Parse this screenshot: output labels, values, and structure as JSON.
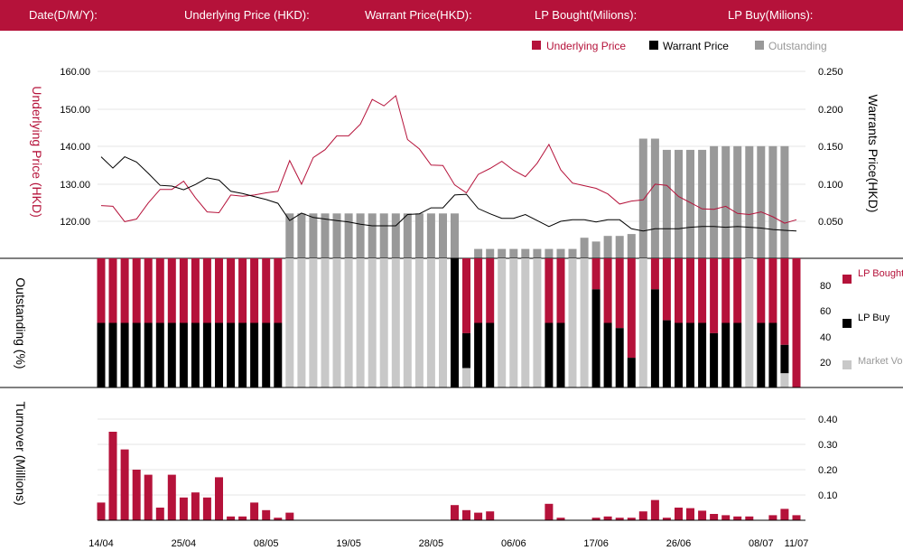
{
  "header": {
    "date_label": "Date(D/M/Y):",
    "underlying_label": "Underlying Price (HKD):",
    "warrant_label": "Warrant  Price(HKD):",
    "lp_bought_label": "LP Bought(Milions):",
    "lp_buy_label": "LP Buy(Milions):"
  },
  "colors": {
    "red": "#b5123a",
    "black": "#000000",
    "dark_gray": "#999999",
    "light_gray": "#c8c8c8"
  },
  "chart_data": [
    {
      "type": "line",
      "legend": [
        "Underlying Price",
        "Warrant  Price",
        "Outstanding"
      ],
      "y_left_label": "Underlying Price (HKD)",
      "y_right_label": "Warrants  Price(HKD)",
      "y_left_ticks": [
        "160.00",
        "150.00",
        "140.00",
        "130.00",
        "120.00"
      ],
      "y_right_ticks": [
        "0.250",
        "0.200",
        "0.150",
        "0.100",
        "0.050"
      ],
      "y_left_range": [
        115,
        160
      ],
      "y_right_range": [
        0.027,
        0.25
      ],
      "underlying": [
        124.2,
        124,
        119.9,
        120.6,
        124.9,
        128.5,
        128.5,
        130.7,
        126.3,
        122.5,
        122.3,
        127,
        126.7,
        127,
        127.6,
        128,
        136.2,
        129.9,
        137,
        139.1,
        142.8,
        142.8,
        145.9,
        152.5,
        150.8,
        153.5,
        141.8,
        139.3,
        135,
        134.9,
        129.7,
        127.6,
        132.5,
        134.1,
        136,
        133.6,
        131.9,
        135.5,
        140.5,
        133.7,
        130.2,
        129.5,
        128.8,
        127.3,
        124.6,
        125.4,
        125.7,
        129.9,
        129.6,
        126.6,
        125,
        123.3,
        123.2,
        124,
        122.1,
        121.8,
        122.5,
        121.2,
        119.5,
        120.4
      ],
      "warrant": [
        0.136,
        0.121,
        0.136,
        0.129,
        0.114,
        0.098,
        0.097,
        0.092,
        0.099,
        0.108,
        0.105,
        0.09,
        0.087,
        0.083,
        0.079,
        0.074,
        0.051,
        0.061,
        0.055,
        0.053,
        0.051,
        0.049,
        0.046,
        0.044,
        0.044,
        0.044,
        0.059,
        0.06,
        0.068,
        0.068,
        0.085,
        0.086,
        0.067,
        0.06,
        0.054,
        0.054,
        0.059,
        0.051,
        0.043,
        0.05,
        0.052,
        0.052,
        0.049,
        0.052,
        0.052,
        0.04,
        0.037,
        0.04,
        0.04,
        0.04,
        0.042,
        0.043,
        0.043,
        0.042,
        0.043,
        0.042,
        0.041,
        0.039,
        0.038,
        0.037
      ],
      "outstanding_pct": [
        0,
        0,
        0,
        0,
        0,
        0,
        0,
        0,
        0,
        0,
        0,
        0,
        0,
        0,
        0,
        0,
        24,
        24,
        24,
        24,
        24,
        24,
        24,
        24,
        24,
        24,
        24,
        24,
        24,
        24,
        24,
        0,
        5,
        5,
        5,
        5,
        5,
        5,
        5,
        5,
        5,
        11,
        9,
        12,
        12,
        13,
        64,
        64,
        58,
        58,
        58,
        58,
        60,
        60,
        60,
        60,
        60,
        60,
        60,
        0
      ]
    },
    {
      "type": "bar",
      "y_label": "Outstanding (%)",
      "y_ticks": [
        "80",
        "60",
        "40",
        "20"
      ],
      "y_range": [
        0,
        100
      ],
      "legend": [
        "LP Bought",
        "LP Buy",
        "Market Volume"
      ],
      "lp_buy_pct": [
        50,
        50,
        50,
        50,
        50,
        50,
        50,
        50,
        50,
        50,
        50,
        50,
        50,
        50,
        50,
        50,
        0,
        0,
        0,
        0,
        0,
        0,
        0,
        0,
        0,
        0,
        0,
        0,
        0,
        0,
        100,
        42,
        50,
        50,
        0,
        0,
        0,
        0,
        50,
        50,
        0,
        0,
        76,
        50,
        46,
        23,
        0,
        76,
        52,
        50,
        50,
        50,
        42,
        50,
        50,
        0,
        50,
        50,
        33,
        0
      ],
      "market_volume_pct": [
        0,
        0,
        0,
        0,
        0,
        0,
        0,
        0,
        0,
        0,
        0,
        0,
        0,
        0,
        0,
        0,
        100,
        100,
        100,
        100,
        100,
        100,
        100,
        100,
        100,
        100,
        100,
        100,
        100,
        100,
        17,
        15,
        0,
        0,
        100,
        100,
        100,
        100,
        0,
        0,
        100,
        100,
        0,
        0,
        0,
        0,
        100,
        0,
        0,
        0,
        0,
        0,
        0,
        0,
        0,
        100,
        0,
        0,
        11,
        0
      ]
    },
    {
      "type": "bar",
      "y_label": "Turnover (Millions)",
      "y_ticks": [
        "0.40",
        "0.30",
        "0.20",
        "0.10"
      ],
      "y_range": [
        0,
        0.4
      ],
      "turnover": [
        0.07,
        0.35,
        0.28,
        0.2,
        0.18,
        0.05,
        0.18,
        0.09,
        0.11,
        0.09,
        0.17,
        0.015,
        0.015,
        0.07,
        0.04,
        0.01,
        0.03,
        0,
        0,
        0,
        0,
        0,
        0,
        0,
        0,
        0,
        0,
        0,
        0,
        0,
        0.06,
        0.04,
        0.03,
        0.035,
        0,
        0,
        0,
        0,
        0.065,
        0.01,
        0,
        0,
        0.01,
        0.015,
        0.01,
        0.01,
        0.035,
        0.08,
        0.01,
        0.05,
        0.048,
        0.038,
        0.025,
        0.02,
        0.015,
        0.015,
        0,
        0.02,
        0.045,
        0.02
      ],
      "x_ticks": [
        {
          "label": "14/04",
          "index": 0
        },
        {
          "label": "25/04",
          "index": 7
        },
        {
          "label": "08/05",
          "index": 14
        },
        {
          "label": "19/05",
          "index": 21
        },
        {
          "label": "28/05",
          "index": 28
        },
        {
          "label": "06/06",
          "index": 35
        },
        {
          "label": "17/06",
          "index": 42
        },
        {
          "label": "26/06",
          "index": 49
        },
        {
          "label": "08/07",
          "index": 56
        },
        {
          "label": "11/07",
          "index": 59
        }
      ]
    }
  ]
}
